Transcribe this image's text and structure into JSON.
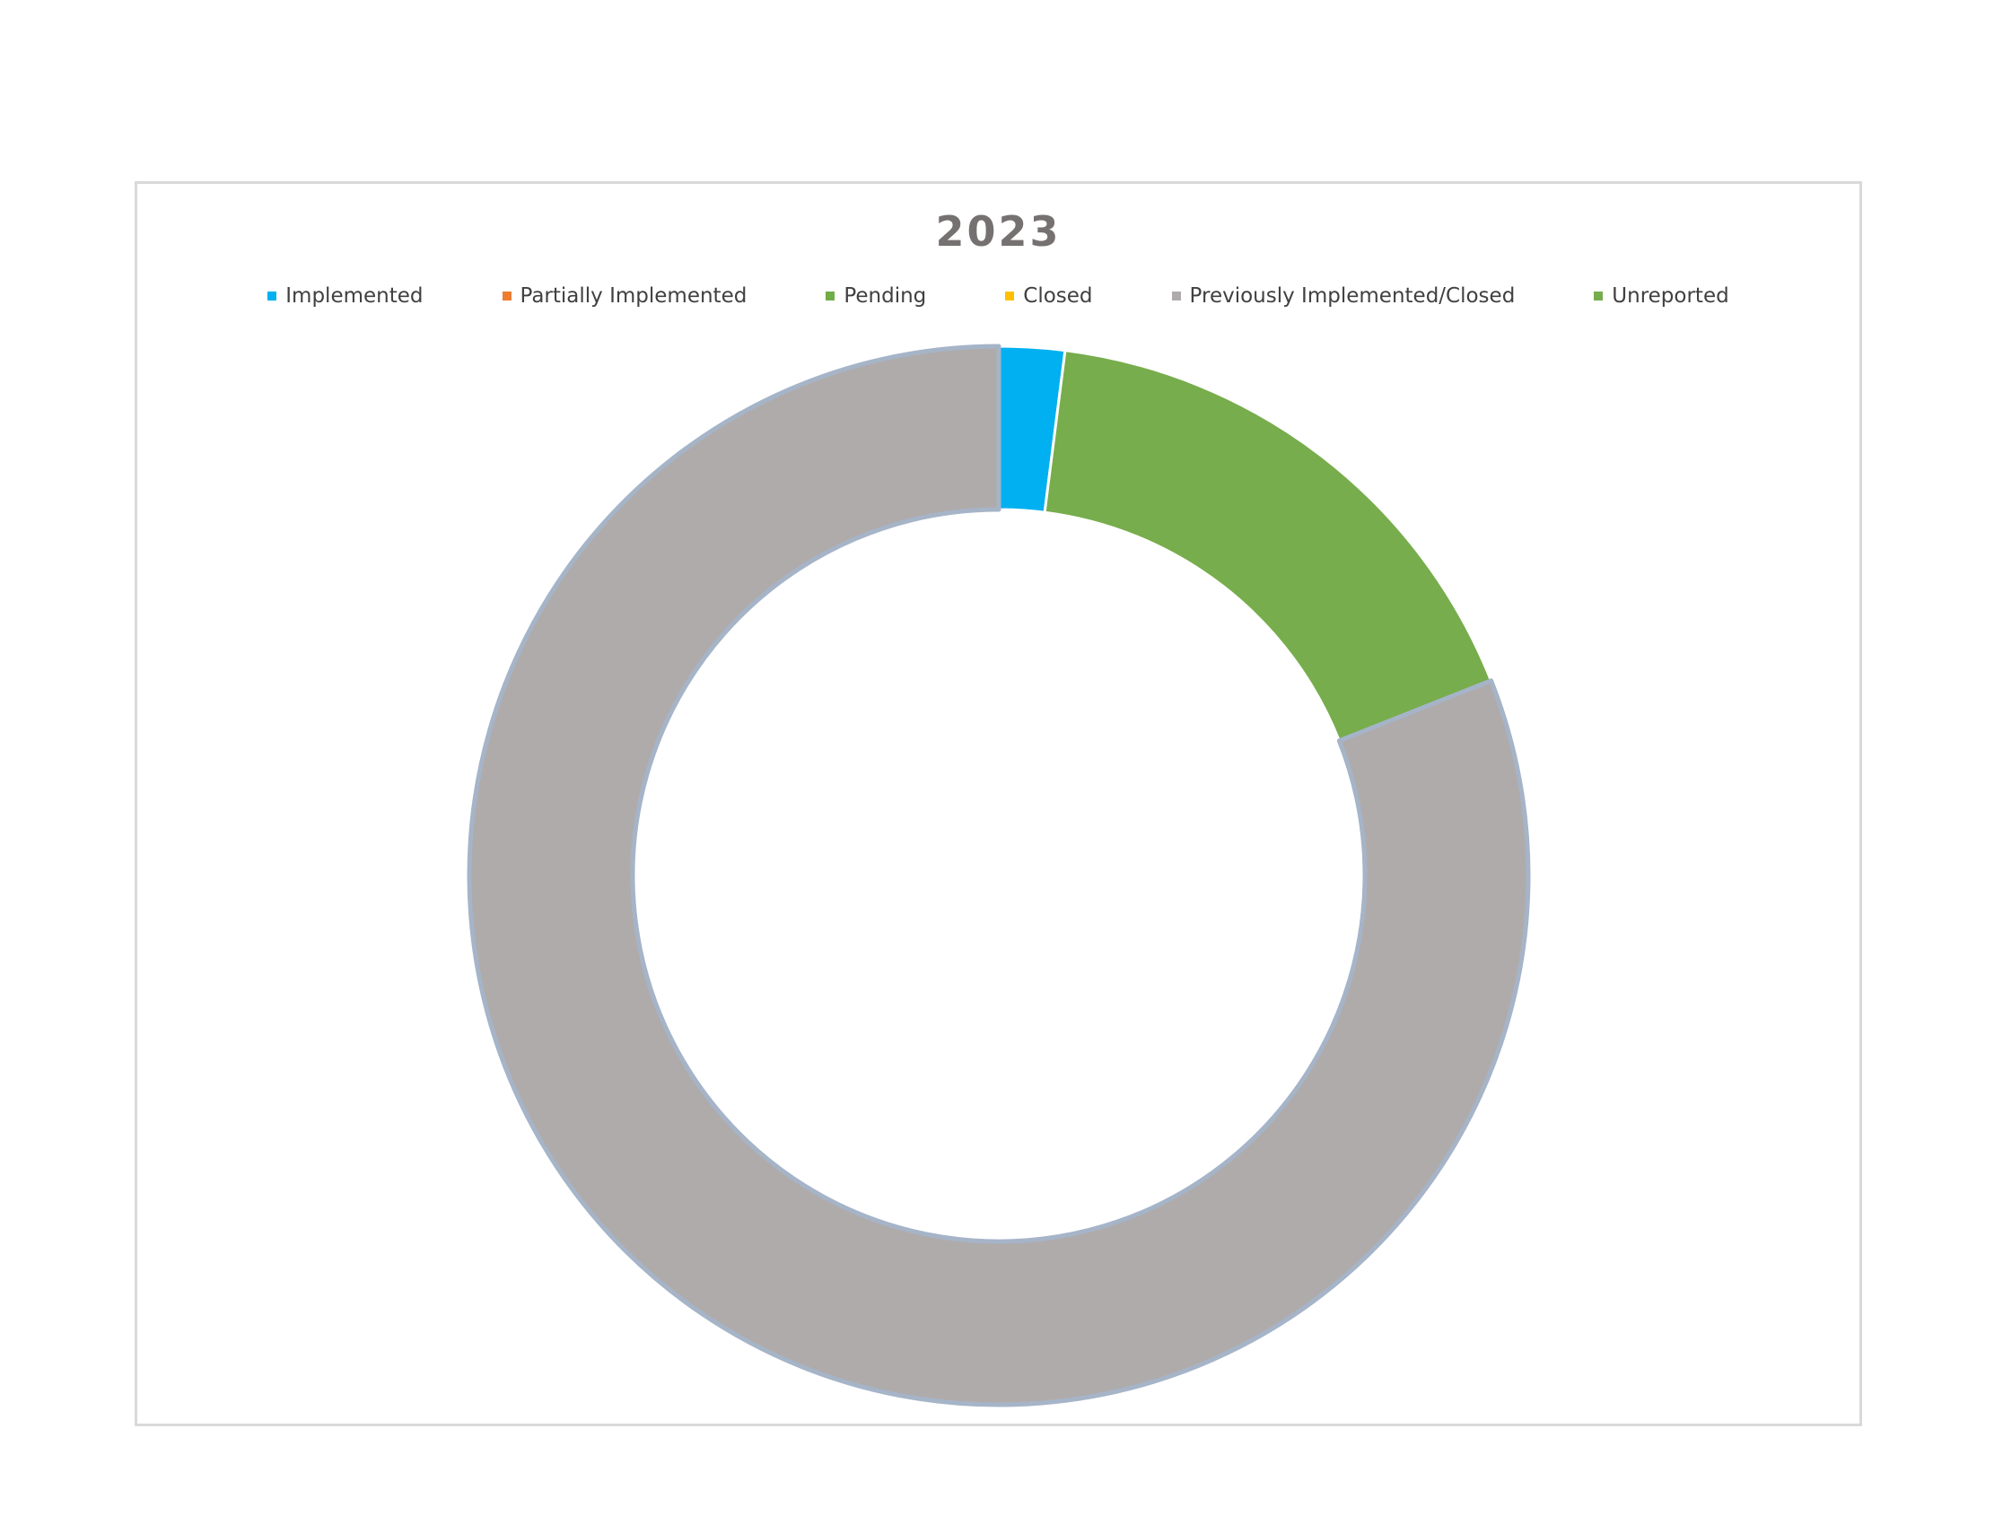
{
  "chart_data": {
    "type": "pie",
    "style": "donut",
    "title": "2023",
    "legend_position": "top",
    "categories": [
      "Implemented",
      "Partially Implemented",
      "Pending",
      "Closed",
      "Previously Implemented/Closed",
      "Unreported"
    ],
    "values": [
      2,
      0,
      0,
      0,
      81,
      17
    ],
    "series_order": [
      "Implemented",
      "Unreported",
      "Previously Implemented/Closed"
    ],
    "colors": {
      "Implemented": "#00b0f0",
      "Partially Implemented": "#ed7d31",
      "Pending": "#70ad47",
      "Closed": "#ffc000",
      "Previously Implemented/Closed": "#afabab",
      "Unreported": "#77ad4c",
      "title": "#767171",
      "slice_outline": "#a6b4c8"
    }
  }
}
